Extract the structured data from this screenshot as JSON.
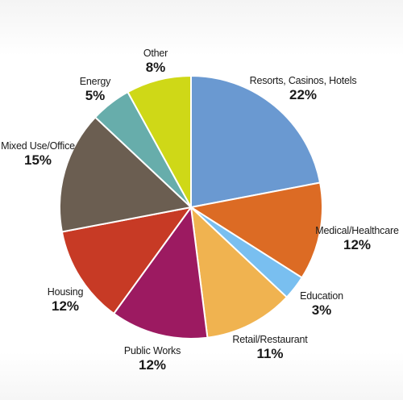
{
  "chart_data": {
    "type": "pie",
    "title": "",
    "slices": [
      {
        "label": "Resorts, Casinos, Hotels",
        "value": 22,
        "value_text": "22%",
        "color": "#6a99d1"
      },
      {
        "label": "Medical/Healthcare",
        "value": 12,
        "value_text": "12%",
        "color": "#dc6b24"
      },
      {
        "label": "Education",
        "value": 3,
        "value_text": "3%",
        "color": "#79bff0"
      },
      {
        "label": "Retail/Restaurant",
        "value": 11,
        "value_text": "11%",
        "color": "#f0b350"
      },
      {
        "label": "Public Works",
        "value": 12,
        "value_text": "12%",
        "color": "#9c1a61"
      },
      {
        "label": "Housing",
        "value": 12,
        "value_text": "12%",
        "color": "#c73a25"
      },
      {
        "label": "Mixed Use/Office",
        "value": 15,
        "value_text": "15%",
        "color": "#6b5e51"
      },
      {
        "label": "Energy",
        "value": 5,
        "value_text": "5%",
        "color": "#67adab"
      },
      {
        "label": "Other",
        "value": 8,
        "value_text": "8%",
        "color": "#cfd817"
      }
    ],
    "start_angle": "12 o'clock",
    "direction": "clockwise",
    "legend": "none"
  }
}
